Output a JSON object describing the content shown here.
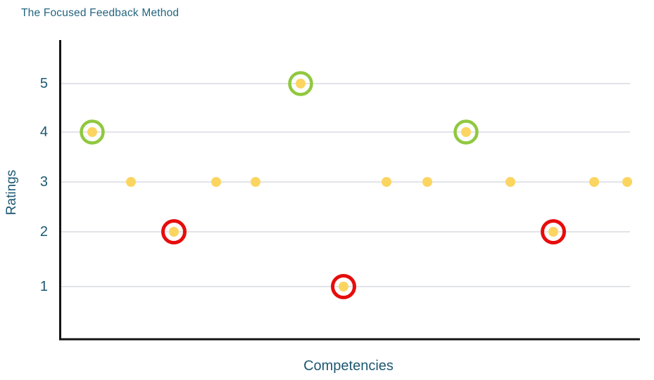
{
  "title": "The Focused Feedback Method",
  "colors": {
    "title_text": "#24657F",
    "axis_text": "#1D5872",
    "dot_fill": "#FBD560",
    "strength_ring": "#90C83F",
    "weakness_ring": "#E60D0D",
    "gridline": "#D8DCE0",
    "axis_line": "#141414",
    "background": "#FFFFFF"
  },
  "chart_data": {
    "type": "scatter",
    "title": "The Focused Feedback Method",
    "xlabel": "Competencies",
    "ylabel": "Ratings",
    "yticks": [
      5,
      4,
      3,
      2,
      1
    ],
    "ytick_labels": [
      "5",
      "4",
      "3",
      "2",
      "1"
    ],
    "ylim": [
      0,
      5.9
    ],
    "grid": true,
    "x_tick_labels": [],
    "legend": "none",
    "points": [
      {
        "competency": 1,
        "rating": 4,
        "highlight": "strength"
      },
      {
        "competency": 2,
        "rating": 3,
        "highlight": null
      },
      {
        "competency": 3,
        "rating": 2,
        "highlight": "weakness"
      },
      {
        "competency": 4,
        "rating": 3,
        "highlight": null
      },
      {
        "competency": 5,
        "rating": 3,
        "highlight": null
      },
      {
        "competency": 6,
        "rating": 5,
        "highlight": "strength"
      },
      {
        "competency": 7,
        "rating": 1,
        "highlight": "weakness"
      },
      {
        "competency": 8,
        "rating": 3,
        "highlight": null
      },
      {
        "competency": 9,
        "rating": 3,
        "highlight": null
      },
      {
        "competency": 10,
        "rating": 4,
        "highlight": "strength"
      },
      {
        "competency": 11,
        "rating": 3,
        "highlight": null
      },
      {
        "competency": 12,
        "rating": 2,
        "highlight": "weakness"
      },
      {
        "competency": 13,
        "rating": 3,
        "highlight": null
      },
      {
        "competency": 14,
        "rating": 3,
        "highlight": null
      }
    ]
  }
}
